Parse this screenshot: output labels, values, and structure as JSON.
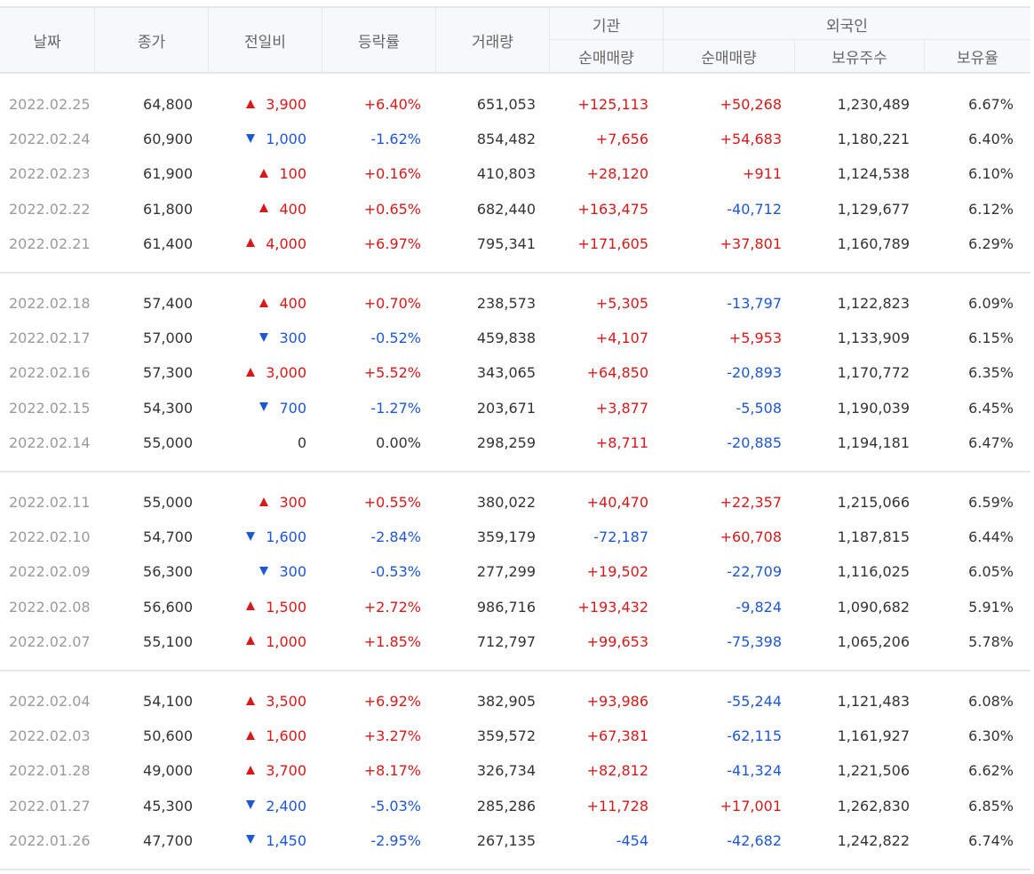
{
  "header": {
    "date": "날짜",
    "close": "종가",
    "change": "전일비",
    "rate": "등락률",
    "volume": "거래량",
    "institution": "기관",
    "institution_net": "순매매량",
    "foreign": "외국인",
    "foreign_net": "순매매량",
    "foreign_holding": "보유주수",
    "foreign_ratio": "보유율"
  },
  "colors": {
    "up": "#d61a1a",
    "down": "#1f57d1"
  },
  "groups": [
    [
      {
        "date": "2022.02.25",
        "close": "64,800",
        "dir": "up",
        "change": "3,900",
        "rate": "+6.40%",
        "volume": "651,053",
        "inst": "+125,113",
        "forn": "+50,268",
        "hold": "1,230,489",
        "ratio": "6.67%"
      },
      {
        "date": "2022.02.24",
        "close": "60,900",
        "dir": "down",
        "change": "1,000",
        "rate": "-1.62%",
        "volume": "854,482",
        "inst": "+7,656",
        "forn": "+54,683",
        "hold": "1,180,221",
        "ratio": "6.40%"
      },
      {
        "date": "2022.02.23",
        "close": "61,900",
        "dir": "up",
        "change": "100",
        "rate": "+0.16%",
        "volume": "410,803",
        "inst": "+28,120",
        "forn": "+911",
        "hold": "1,124,538",
        "ratio": "6.10%"
      },
      {
        "date": "2022.02.22",
        "close": "61,800",
        "dir": "up",
        "change": "400",
        "rate": "+0.65%",
        "volume": "682,440",
        "inst": "+163,475",
        "forn": "-40,712",
        "hold": "1,129,677",
        "ratio": "6.12%"
      },
      {
        "date": "2022.02.21",
        "close": "61,400",
        "dir": "up",
        "change": "4,000",
        "rate": "+6.97%",
        "volume": "795,341",
        "inst": "+171,605",
        "forn": "+37,801",
        "hold": "1,160,789",
        "ratio": "6.29%"
      }
    ],
    [
      {
        "date": "2022.02.18",
        "close": "57,400",
        "dir": "up",
        "change": "400",
        "rate": "+0.70%",
        "volume": "238,573",
        "inst": "+5,305",
        "forn": "-13,797",
        "hold": "1,122,823",
        "ratio": "6.09%"
      },
      {
        "date": "2022.02.17",
        "close": "57,000",
        "dir": "down",
        "change": "300",
        "rate": "-0.52%",
        "volume": "459,838",
        "inst": "+4,107",
        "forn": "+5,953",
        "hold": "1,133,909",
        "ratio": "6.15%"
      },
      {
        "date": "2022.02.16",
        "close": "57,300",
        "dir": "up",
        "change": "3,000",
        "rate": "+5.52%",
        "volume": "343,065",
        "inst": "+64,850",
        "forn": "-20,893",
        "hold": "1,170,772",
        "ratio": "6.35%"
      },
      {
        "date": "2022.02.15",
        "close": "54,300",
        "dir": "down",
        "change": "700",
        "rate": "-1.27%",
        "volume": "203,671",
        "inst": "+3,877",
        "forn": "-5,508",
        "hold": "1,190,039",
        "ratio": "6.45%"
      },
      {
        "date": "2022.02.14",
        "close": "55,000",
        "dir": "flat",
        "change": "0",
        "rate": "0.00%",
        "volume": "298,259",
        "inst": "+8,711",
        "forn": "-20,885",
        "hold": "1,194,181",
        "ratio": "6.47%"
      }
    ],
    [
      {
        "date": "2022.02.11",
        "close": "55,000",
        "dir": "up",
        "change": "300",
        "rate": "+0.55%",
        "volume": "380,022",
        "inst": "+40,470",
        "forn": "+22,357",
        "hold": "1,215,066",
        "ratio": "6.59%"
      },
      {
        "date": "2022.02.10",
        "close": "54,700",
        "dir": "down",
        "change": "1,600",
        "rate": "-2.84%",
        "volume": "359,179",
        "inst": "-72,187",
        "forn": "+60,708",
        "hold": "1,187,815",
        "ratio": "6.44%"
      },
      {
        "date": "2022.02.09",
        "close": "56,300",
        "dir": "down",
        "change": "300",
        "rate": "-0.53%",
        "volume": "277,299",
        "inst": "+19,502",
        "forn": "-22,709",
        "hold": "1,116,025",
        "ratio": "6.05%"
      },
      {
        "date": "2022.02.08",
        "close": "56,600",
        "dir": "up",
        "change": "1,500",
        "rate": "+2.72%",
        "volume": "986,716",
        "inst": "+193,432",
        "forn": "-9,824",
        "hold": "1,090,682",
        "ratio": "5.91%"
      },
      {
        "date": "2022.02.07",
        "close": "55,100",
        "dir": "up",
        "change": "1,000",
        "rate": "+1.85%",
        "volume": "712,797",
        "inst": "+99,653",
        "forn": "-75,398",
        "hold": "1,065,206",
        "ratio": "5.78%"
      }
    ],
    [
      {
        "date": "2022.02.04",
        "close": "54,100",
        "dir": "up",
        "change": "3,500",
        "rate": "+6.92%",
        "volume": "382,905",
        "inst": "+93,986",
        "forn": "-55,244",
        "hold": "1,121,483",
        "ratio": "6.08%"
      },
      {
        "date": "2022.02.03",
        "close": "50,600",
        "dir": "up",
        "change": "1,600",
        "rate": "+3.27%",
        "volume": "359,572",
        "inst": "+67,381",
        "forn": "-62,115",
        "hold": "1,161,927",
        "ratio": "6.30%"
      },
      {
        "date": "2022.01.28",
        "close": "49,000",
        "dir": "up",
        "change": "3,700",
        "rate": "+8.17%",
        "volume": "326,734",
        "inst": "+82,812",
        "forn": "-41,324",
        "hold": "1,221,506",
        "ratio": "6.62%"
      },
      {
        "date": "2022.01.27",
        "close": "45,300",
        "dir": "down",
        "change": "2,400",
        "rate": "-5.03%",
        "volume": "285,286",
        "inst": "+11,728",
        "forn": "+17,001",
        "hold": "1,262,830",
        "ratio": "6.85%"
      },
      {
        "date": "2022.01.26",
        "close": "47,700",
        "dir": "down",
        "change": "1,450",
        "rate": "-2.95%",
        "volume": "267,135",
        "inst": "-454",
        "forn": "-42,682",
        "hold": "1,242,822",
        "ratio": "6.74%"
      }
    ]
  ]
}
